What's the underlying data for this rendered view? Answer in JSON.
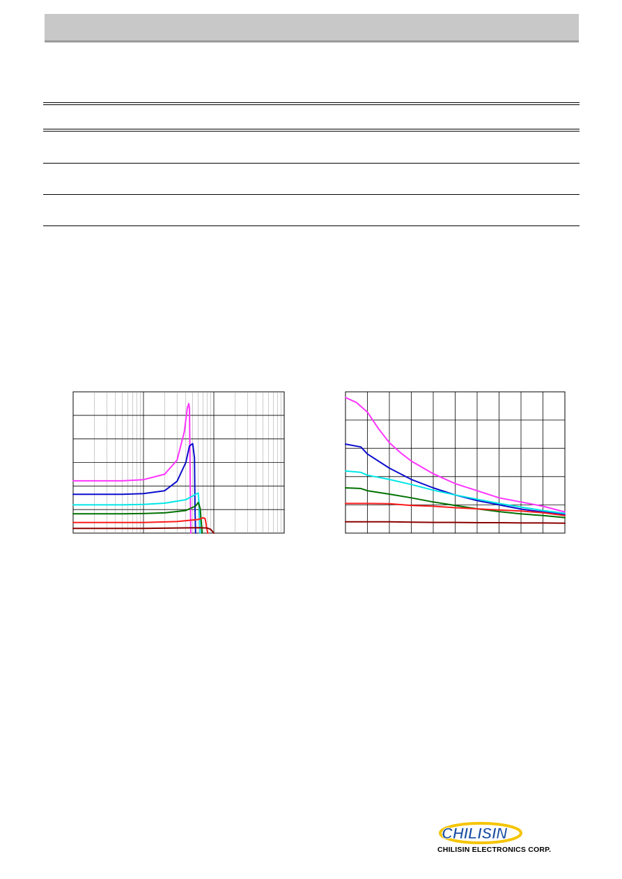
{
  "header": {
    "title": ""
  },
  "company": {
    "name": "CHILISIN ELECTRONICS CORP.",
    "logo_text": "CHILISIN"
  },
  "colors": {
    "header_bar": "#c8c8c8",
    "logo_blue": "#1b4fa3",
    "logo_yellow": "#f5c400"
  },
  "chart_data": [
    {
      "type": "line",
      "title": "",
      "xlabel": "",
      "ylabel": "",
      "x_scale": "log",
      "xlim": [
        1,
        1000
      ],
      "ylim": [
        0,
        6
      ],
      "grid": true,
      "series": [
        {
          "color": "#ff33ff",
          "x": [
            1,
            5,
            10,
            20,
            30,
            38,
            42,
            44,
            45,
            47
          ],
          "y": [
            2.22,
            2.22,
            2.27,
            2.5,
            3.1,
            4.3,
            5.3,
            5.5,
            5.3,
            0.0
          ]
        },
        {
          "color": "#0b0bcc",
          "x": [
            1,
            5,
            10,
            20,
            30,
            40,
            45,
            50,
            53,
            54,
            55
          ],
          "y": [
            1.65,
            1.65,
            1.68,
            1.8,
            2.2,
            3.0,
            3.7,
            3.8,
            3.2,
            1.0,
            0.0
          ]
        },
        {
          "color": "#00e6e6",
          "x": [
            1,
            5,
            10,
            20,
            40,
            55,
            60,
            62,
            63,
            64
          ],
          "y": [
            1.2,
            1.2,
            1.22,
            1.27,
            1.42,
            1.65,
            1.7,
            1.2,
            0.4,
            0.0
          ]
        },
        {
          "color": "#007000",
          "x": [
            1,
            5,
            10,
            20,
            40,
            55,
            60,
            64,
            67,
            68
          ],
          "y": [
            0.82,
            0.82,
            0.83,
            0.86,
            0.96,
            1.15,
            1.3,
            1.05,
            0.3,
            0.0
          ]
        },
        {
          "color": "#ff1a1a",
          "x": [
            1,
            10,
            30,
            60,
            70,
            75,
            77,
            80,
            82
          ],
          "y": [
            0.45,
            0.45,
            0.49,
            0.58,
            0.65,
            0.62,
            0.45,
            0.15,
            0.0
          ]
        },
        {
          "color": "#8b0000",
          "x": [
            1,
            10,
            30,
            60,
            80,
            90,
            95,
            98,
            100
          ],
          "y": [
            0.2,
            0.2,
            0.22,
            0.23,
            0.22,
            0.16,
            0.08,
            0.02,
            0.0
          ]
        }
      ]
    },
    {
      "type": "line",
      "title": "",
      "xlabel": "",
      "ylabel": "",
      "xlim": [
        0,
        10
      ],
      "ylim": [
        0,
        5
      ],
      "grid": true,
      "series": [
        {
          "color": "#ff33ff",
          "x": [
            0,
            0.5,
            1,
            1.5,
            2,
            2.5,
            3,
            4,
            5,
            6,
            7,
            8,
            9,
            10
          ],
          "y": [
            4.8,
            4.62,
            4.28,
            3.7,
            3.2,
            2.85,
            2.55,
            2.1,
            1.75,
            1.5,
            1.25,
            1.1,
            0.95,
            0.75
          ]
        },
        {
          "color": "#0b0bcc",
          "x": [
            0,
            0.7,
            1,
            2,
            3,
            4,
            5,
            6,
            7,
            8,
            9,
            10
          ],
          "y": [
            3.15,
            3.05,
            2.8,
            2.3,
            1.9,
            1.6,
            1.35,
            1.15,
            1.0,
            0.85,
            0.75,
            0.65
          ]
        },
        {
          "color": "#00e6e6",
          "x": [
            0,
            0.7,
            1,
            2,
            3,
            4,
            5,
            6,
            7,
            8,
            9,
            10
          ],
          "y": [
            2.2,
            2.15,
            2.05,
            1.9,
            1.72,
            1.52,
            1.35,
            1.2,
            1.05,
            0.92,
            0.8,
            0.7
          ]
        },
        {
          "color": "#007000",
          "x": [
            0,
            0.7,
            1,
            2,
            3,
            4,
            5,
            6,
            7,
            8,
            9,
            10
          ],
          "y": [
            1.6,
            1.58,
            1.5,
            1.38,
            1.25,
            1.1,
            0.98,
            0.86,
            0.76,
            0.68,
            0.62,
            0.55
          ]
        },
        {
          "color": "#ff1a1a",
          "x": [
            0,
            1,
            2,
            3,
            4,
            5,
            6,
            7,
            8,
            9,
            10
          ],
          "y": [
            1.05,
            1.05,
            1.04,
            0.98,
            0.95,
            0.9,
            0.86,
            0.82,
            0.78,
            0.72,
            0.62
          ]
        },
        {
          "color": "#8b0000",
          "x": [
            0,
            1,
            2,
            3,
            4,
            5,
            6,
            7,
            8,
            9,
            10
          ],
          "y": [
            0.4,
            0.4,
            0.4,
            0.39,
            0.38,
            0.38,
            0.37,
            0.37,
            0.36,
            0.36,
            0.35
          ]
        }
      ]
    }
  ]
}
